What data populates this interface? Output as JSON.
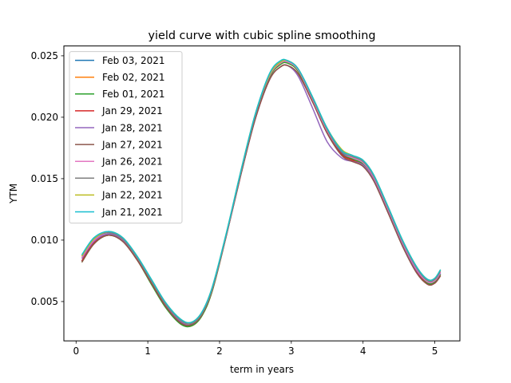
{
  "chart_data": {
    "type": "line",
    "title": "yield curve with cubic spline smoothing",
    "xlabel": "term in years",
    "ylabel": "YTM",
    "xlim": [
      -0.17,
      5.35
    ],
    "ylim": [
      0.0018,
      0.0258
    ],
    "xticks": [
      0,
      1,
      2,
      3,
      4,
      5
    ],
    "xtick_labels": [
      "0",
      "1",
      "2",
      "3",
      "4",
      "5"
    ],
    "yticks": [
      0.005,
      0.01,
      0.015,
      0.02,
      0.025
    ],
    "ytick_labels": [
      "0.005",
      "0.010",
      "0.015",
      "0.020",
      "0.025"
    ],
    "grid": false,
    "legend_position": "upper-left",
    "x": [
      0.08,
      0.25,
      0.45,
      0.65,
      0.85,
      1.05,
      1.25,
      1.45,
      1.6,
      1.75,
      1.9,
      2.1,
      2.3,
      2.5,
      2.7,
      2.85,
      2.95,
      3.1,
      3.3,
      3.5,
      3.7,
      3.85,
      4.0,
      4.15,
      4.35,
      4.55,
      4.75,
      4.9,
      5.0,
      5.08
    ],
    "series": [
      {
        "name": "Feb 03, 2021",
        "color": "#1f77b4",
        "values": [
          0.0083,
          0.0098,
          0.0105,
          0.01,
          0.0085,
          0.0066,
          0.0047,
          0.0034,
          0.0031,
          0.0039,
          0.006,
          0.0106,
          0.0156,
          0.0202,
          0.0234,
          0.0244,
          0.0245,
          0.0238,
          0.0214,
          0.0188,
          0.0171,
          0.0167,
          0.0163,
          0.0151,
          0.0125,
          0.0098,
          0.0076,
          0.0066,
          0.0067,
          0.0073
        ]
      },
      {
        "name": "Feb 02, 2021",
        "color": "#ff7f0e",
        "values": [
          0.0082,
          0.0097,
          0.0104,
          0.0099,
          0.0084,
          0.0065,
          0.0046,
          0.0033,
          0.003,
          0.0038,
          0.0059,
          0.0105,
          0.0155,
          0.0201,
          0.0233,
          0.0243,
          0.0244,
          0.0237,
          0.0213,
          0.0187,
          0.017,
          0.0166,
          0.0162,
          0.015,
          0.0124,
          0.0097,
          0.0075,
          0.0065,
          0.0066,
          0.0072
        ]
      },
      {
        "name": "Feb 01, 2021",
        "color": "#2ca02c",
        "values": [
          0.0082,
          0.0097,
          0.0104,
          0.0099,
          0.0084,
          0.0064,
          0.0045,
          0.0032,
          0.003,
          0.0038,
          0.0059,
          0.0105,
          0.0155,
          0.0201,
          0.0233,
          0.0243,
          0.0244,
          0.0237,
          0.0213,
          0.0187,
          0.017,
          0.0166,
          0.0162,
          0.015,
          0.0124,
          0.0097,
          0.0075,
          0.0065,
          0.0066,
          0.0072
        ]
      },
      {
        "name": "Jan 29, 2021",
        "color": "#d62728",
        "values": [
          0.0083,
          0.0098,
          0.0104,
          0.0099,
          0.0084,
          0.0065,
          0.0046,
          0.0033,
          0.0031,
          0.0039,
          0.006,
          0.0105,
          0.0154,
          0.0199,
          0.0231,
          0.0241,
          0.0242,
          0.0235,
          0.0212,
          0.0187,
          0.017,
          0.0165,
          0.0161,
          0.0149,
          0.0123,
          0.0096,
          0.0074,
          0.0064,
          0.0065,
          0.0071
        ]
      },
      {
        "name": "Jan 28, 2021",
        "color": "#9467bd",
        "values": [
          0.0085,
          0.0099,
          0.0105,
          0.01,
          0.0085,
          0.0066,
          0.0047,
          0.0034,
          0.0031,
          0.0039,
          0.006,
          0.0105,
          0.0154,
          0.0199,
          0.0231,
          0.0241,
          0.0242,
          0.0233,
          0.0207,
          0.018,
          0.0167,
          0.0164,
          0.0161,
          0.0149,
          0.0123,
          0.0096,
          0.0075,
          0.0066,
          0.0067,
          0.0073
        ]
      },
      {
        "name": "Jan 27, 2021",
        "color": "#8c564b",
        "values": [
          0.0082,
          0.0097,
          0.0104,
          0.0099,
          0.0084,
          0.0065,
          0.0046,
          0.0033,
          0.0031,
          0.0039,
          0.006,
          0.0105,
          0.0154,
          0.0199,
          0.0231,
          0.0241,
          0.0242,
          0.0235,
          0.0212,
          0.0187,
          0.0169,
          0.0164,
          0.016,
          0.0148,
          0.0122,
          0.0095,
          0.0073,
          0.0064,
          0.0065,
          0.0071
        ]
      },
      {
        "name": "Jan 26, 2021",
        "color": "#e377c2",
        "values": [
          0.0086,
          0.01,
          0.0106,
          0.0101,
          0.0086,
          0.0067,
          0.0048,
          0.0035,
          0.0032,
          0.004,
          0.0061,
          0.0106,
          0.0156,
          0.0202,
          0.0234,
          0.0244,
          0.0245,
          0.0238,
          0.0214,
          0.0189,
          0.0172,
          0.0167,
          0.0163,
          0.0151,
          0.0125,
          0.0098,
          0.0076,
          0.0066,
          0.0067,
          0.0074
        ]
      },
      {
        "name": "Jan 25, 2021",
        "color": "#7f7f7f",
        "values": [
          0.0087,
          0.0101,
          0.0106,
          0.0101,
          0.0086,
          0.0067,
          0.0048,
          0.0035,
          0.0032,
          0.004,
          0.0061,
          0.0106,
          0.0156,
          0.0202,
          0.0235,
          0.0245,
          0.0246,
          0.0239,
          0.0215,
          0.019,
          0.0172,
          0.0168,
          0.0164,
          0.0152,
          0.0126,
          0.0099,
          0.0077,
          0.0067,
          0.0068,
          0.0075
        ]
      },
      {
        "name": "Jan 22, 2021",
        "color": "#bcbd22",
        "values": [
          0.0087,
          0.0101,
          0.0107,
          0.0102,
          0.0087,
          0.0068,
          0.0049,
          0.0036,
          0.0033,
          0.0041,
          0.0062,
          0.0107,
          0.0157,
          0.0203,
          0.0235,
          0.0245,
          0.0246,
          0.0239,
          0.0216,
          0.0191,
          0.0174,
          0.0169,
          0.0165,
          0.0153,
          0.0127,
          0.01,
          0.0078,
          0.0068,
          0.0069,
          0.0076
        ]
      },
      {
        "name": "Jan 21, 2021",
        "color": "#17becf",
        "values": [
          0.0088,
          0.0102,
          0.0107,
          0.0102,
          0.0087,
          0.0068,
          0.0049,
          0.0036,
          0.0033,
          0.0041,
          0.0062,
          0.0107,
          0.0157,
          0.0203,
          0.0236,
          0.0246,
          0.0246,
          0.0239,
          0.0216,
          0.0191,
          0.0173,
          0.0169,
          0.0165,
          0.0153,
          0.0127,
          0.01,
          0.0078,
          0.0068,
          0.0069,
          0.0076
        ]
      }
    ]
  }
}
